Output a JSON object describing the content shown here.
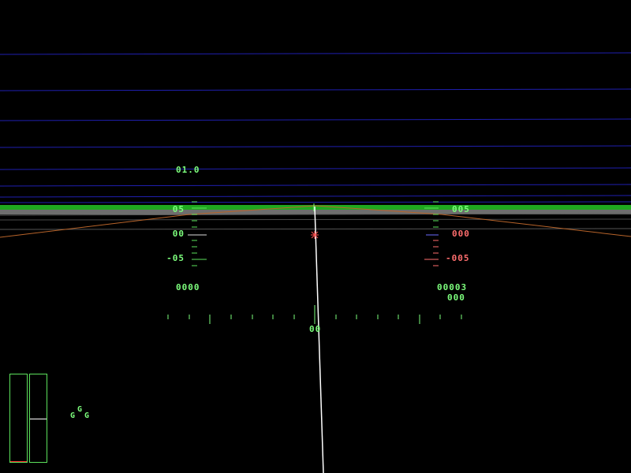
{
  "colors": {
    "hud_green": "#7dff7d",
    "hud_red": "#ff6e6e",
    "horizon_green": "#1fa81f",
    "ground_gray": "#7a7a7a",
    "sky_grid_blue": "#1f1fb0",
    "terrain_orange": "#b8642a",
    "flight_path_white": "#ffffff"
  },
  "hud": {
    "speed_top_readout": "01.0",
    "pitch_left": {
      "up_label": "05",
      "zero_label": "00",
      "down_label": "-05"
    },
    "pitch_right": {
      "up_label": "005",
      "zero_label": "000",
      "down_label": "-005"
    },
    "left_bottom_readout": "0000",
    "right_bottom_readout_1": "00003",
    "right_bottom_readout_2": "000",
    "heading_readout": "00"
  },
  "gear_indicator": {
    "icon": "landing-gear-icon",
    "top": "G",
    "left": "G",
    "right": "G"
  },
  "gauges": {
    "throttle": {
      "fill_fraction": 0.01,
      "fill_color": "#ff3030"
    },
    "fuel": {
      "marker_fraction": 0.5
    }
  }
}
